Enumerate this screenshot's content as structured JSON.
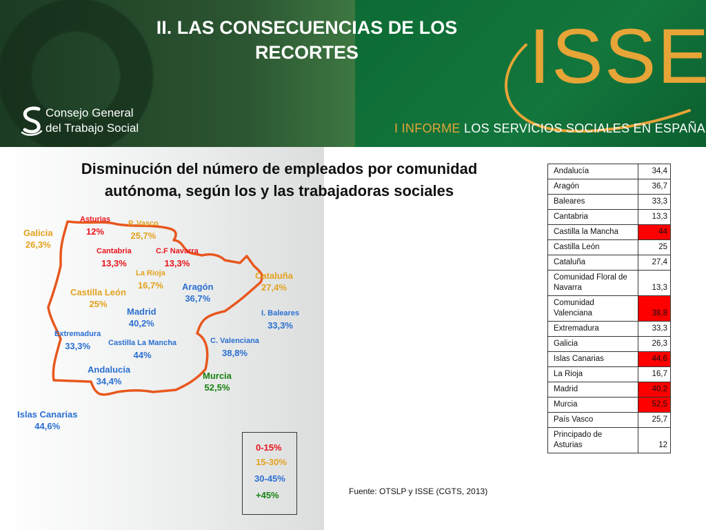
{
  "header": {
    "title_line1": "II. LAS CONSECUENCIAS DE LOS",
    "title_line2": "RECORTES",
    "cgts_line1": "Consejo  General",
    "cgts_line2": "del  Trabajo Social",
    "isse_logo": "ISSE",
    "report_accent": "I  INFORME",
    "report_rest": "LOS  SERVICIOS  SOCIALES  EN  ESPAÑA"
  },
  "subtitle": {
    "line1": "Disminución del número de empleados por comunidad",
    "line2": "autónoma, según los y las trabajadoras sociales"
  },
  "map_labels": [
    {
      "id": "asturias",
      "name": "Asturias",
      "value": "12%"
    },
    {
      "id": "pvasco",
      "name": "P. Vasco",
      "value": "25,7%"
    },
    {
      "id": "galicia",
      "name": "Galicia",
      "value": "26,3%"
    },
    {
      "id": "cantabria",
      "name": "Cantabria",
      "value": "13,3%"
    },
    {
      "id": "navarra",
      "name": "C.F Navarra",
      "value": "13,3%"
    },
    {
      "id": "rioja",
      "name": "La Rioja",
      "value": "16,7%"
    },
    {
      "id": "cataluna",
      "name": "Cataluña",
      "value": "27,4%"
    },
    {
      "id": "cleon",
      "name": "Castilla León",
      "value": "25%"
    },
    {
      "id": "aragon",
      "name": "Aragón",
      "value": "36,7%"
    },
    {
      "id": "madrid",
      "name": "Madrid",
      "value": "40,2%"
    },
    {
      "id": "baleares",
      "name": "I. Baleares",
      "value": "33,3%"
    },
    {
      "id": "extremadura",
      "name": "Extremadura",
      "value": "33,3%"
    },
    {
      "id": "cmancha",
      "name": "Castilla La Mancha",
      "value": "44%"
    },
    {
      "id": "valenciana",
      "name": "C. Valenciana",
      "value": "38,8%"
    },
    {
      "id": "andalucia",
      "name": "Andalucía",
      "value": "34,4%"
    },
    {
      "id": "murcia",
      "name": "Murcia",
      "value": "52,5%"
    },
    {
      "id": "canarias",
      "name": "Islas Canarias",
      "value": "44,6%"
    }
  ],
  "legend": [
    "0-15%",
    "15-30%",
    "30-45%",
    "+45%"
  ],
  "colors": {
    "range_0_15": "#e8141b",
    "range_15_30": "#e3a11c",
    "range_30_45": "#2a6fd1",
    "range_45_plus": "#16800f",
    "highlight": "#ff0000",
    "brand_orange": "#e7a437",
    "brand_green": "#13763c"
  },
  "source": "Fuente: OTSLP y ISSE (CGTS, 2013)",
  "table": {
    "rows": [
      {
        "name": "Andalucía",
        "value": "34,4",
        "highlight": false
      },
      {
        "name": "Aragón",
        "value": "36,7",
        "highlight": false
      },
      {
        "name": "Baleares",
        "value": "33,3",
        "highlight": false
      },
      {
        "name": "Cantabria",
        "value": "13,3",
        "highlight": false
      },
      {
        "name": "Castilla la Mancha",
        "value": "44",
        "highlight": true
      },
      {
        "name": "Castilla León",
        "value": "25",
        "highlight": false
      },
      {
        "name": "Cataluña",
        "value": "27,4",
        "highlight": false
      },
      {
        "name": "Comunidad Floral de Navarra",
        "value": "13,3",
        "highlight": false
      },
      {
        "name": "Comunidad Valenciana",
        "value": "38,8",
        "highlight": true
      },
      {
        "name": "Extremadura",
        "value": "33,3",
        "highlight": false
      },
      {
        "name": "Galicia",
        "value": "26,3",
        "highlight": false
      },
      {
        "name": "Islas Canarias",
        "value": "44,6",
        "highlight": true
      },
      {
        "name": "La Rioja",
        "value": "16,7",
        "highlight": false
      },
      {
        "name": "Madrid",
        "value": "40,2",
        "highlight": true
      },
      {
        "name": "Murcia",
        "value": "52,5",
        "highlight": true
      },
      {
        "name": "País Vasco",
        "value": "25,7",
        "highlight": false
      },
      {
        "name": "Principado de Asturias",
        "value": "12",
        "highlight": false
      }
    ]
  }
}
